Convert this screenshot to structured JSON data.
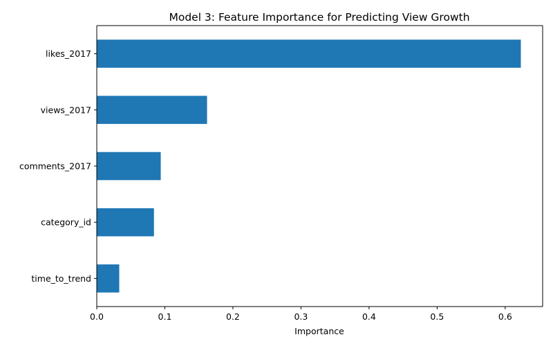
{
  "chart_data": {
    "type": "bar",
    "orientation": "horizontal",
    "title": "Model 3: Feature Importance for Predicting View Growth",
    "xlabel": "Importance",
    "ylabel": "",
    "categories": [
      "likes_2017",
      "views_2017",
      "comments_2017",
      "category_id",
      "time_to_trend"
    ],
    "values": [
      0.623,
      0.162,
      0.094,
      0.084,
      0.033
    ],
    "xlim": [
      0,
      0.655
    ],
    "xticks": [
      0.0,
      0.1,
      0.2,
      0.3,
      0.4,
      0.5,
      0.6
    ],
    "xtick_labels": [
      "0.0",
      "0.1",
      "0.2",
      "0.3",
      "0.4",
      "0.5",
      "0.6"
    ],
    "bar_color": "#1f77b4",
    "grid": false,
    "legend": "none"
  }
}
